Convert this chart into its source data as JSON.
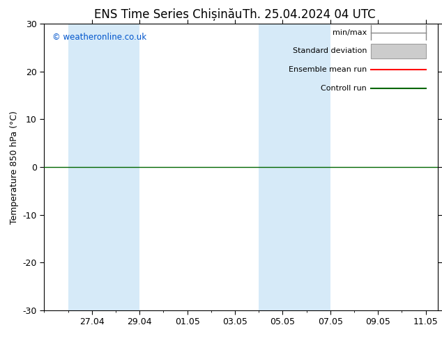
{
  "title_left": "ENS Time Series Chișinău",
  "title_right": "Th. 25.04.2024 04 UTC",
  "ylabel": "Temperature 850 hPa (°C)",
  "copyright": "© weatheronline.co.uk",
  "ylim": [
    -30,
    30
  ],
  "yticks": [
    -30,
    -20,
    -10,
    0,
    10,
    20,
    30
  ],
  "x_tick_labels": [
    "27.04",
    "29.04",
    "01.05",
    "03.05",
    "05.05",
    "07.05",
    "09.05",
    "11.05"
  ],
  "x_tick_positions": [
    2,
    4,
    6,
    8,
    10,
    12,
    14,
    16
  ],
  "x_lim": [
    0,
    16.5
  ],
  "shaded_bands": [
    {
      "x_start": 1.0,
      "x_end": 3.0,
      "color": "#cce5f5"
    },
    {
      "x_start": 3.0,
      "x_end": 4.0,
      "color": "#cce5f5"
    },
    {
      "x_start": 9.0,
      "x_end": 11.0,
      "color": "#cce5f5"
    },
    {
      "x_start": 11.0,
      "x_end": 12.0,
      "color": "#cce5f5"
    }
  ],
  "shaded_bands2": [
    {
      "x_start": 1.0,
      "x_end": 4.0,
      "color": "#d6eaf8"
    },
    {
      "x_start": 9.0,
      "x_end": 12.0,
      "color": "#d6eaf8"
    }
  ],
  "hline_y": 0,
  "hline_color": "#006600",
  "legend_labels": [
    "min/max",
    "Standard deviation",
    "Ensemble mean run",
    "Controll run"
  ],
  "legend_line_colors": [
    "#999999",
    "#cccccc",
    "#ff0000",
    "#006600"
  ],
  "axis_bg_color": "#ffffff",
  "fig_bg_color": "#ffffff",
  "tick_fontsize": 9,
  "label_fontsize": 9,
  "title_fontsize": 12,
  "font_family": "DejaVu Sans"
}
